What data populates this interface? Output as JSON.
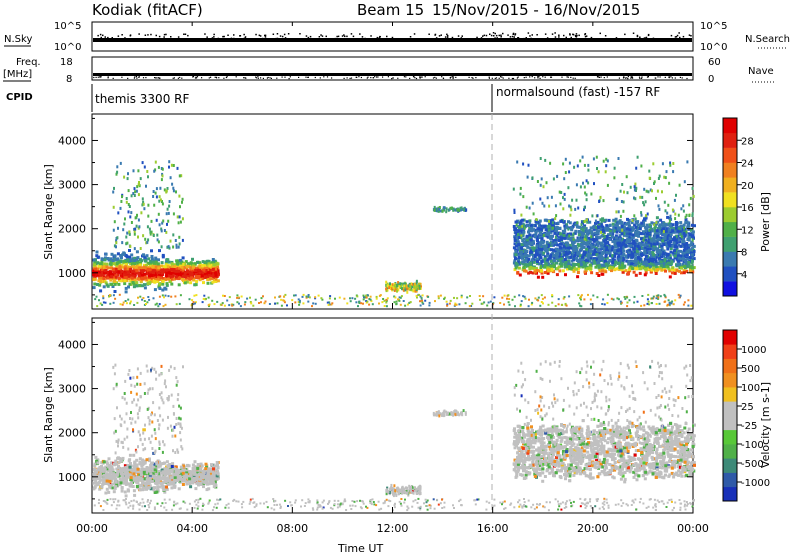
{
  "header": {
    "station": "Kodiak (fitACF)",
    "beam": "Beam 15",
    "date_range": "15/Nov/2015 - 16/Nov/2015"
  },
  "strips": {
    "nsky_label": "N.Sky",
    "nsky_ticks": [
      "10^5",
      "10^0"
    ],
    "nsearch_label": "N.Search",
    "nsearch_ticks": [
      "10^5",
      "10^0"
    ],
    "freq_label_line1": "Freq.",
    "freq_label_line2": "[MHz]",
    "freq_ticks": [
      "18",
      "8"
    ],
    "nave_label": "Nave",
    "nave_ticks": [
      "60",
      "0"
    ],
    "cpid_label": "CPID",
    "cpid_segments": [
      {
        "label": "themis 3300 RF",
        "start_hour": 0
      },
      {
        "label": "normalsound (fast) -157 RF",
        "start_hour": 16
      }
    ]
  },
  "chart_data": [
    {
      "type": "heatmap",
      "panel": "power",
      "xlabel": "",
      "ylabel": "Slant Range [km]",
      "xlim": [
        0,
        24
      ],
      "ylim": [
        180,
        4600
      ],
      "yticks": [
        1000,
        2000,
        3000,
        4000
      ],
      "colorbar": {
        "label": "Power [dB]",
        "ticks": [
          4,
          8,
          12,
          16,
          20,
          24,
          28
        ],
        "colors": [
          "#1010e0",
          "#2050c0",
          "#3a7ab0",
          "#3fa070",
          "#50b048",
          "#9ccc30",
          "#f0e020",
          "#f0b020",
          "#f08020",
          "#f05018",
          "#e02010",
          "#e00000"
        ]
      }
    },
    {
      "type": "heatmap",
      "panel": "velocity",
      "xlabel": "Time UT",
      "ylabel": "Slant Range [km]",
      "xlim": [
        0,
        24
      ],
      "ylim": [
        180,
        4600
      ],
      "yticks": [
        1000,
        2000,
        3000,
        4000
      ],
      "xticks": [
        "00:00",
        "04:00",
        "08:00",
        "12:00",
        "16:00",
        "20:00",
        "00:00"
      ],
      "colorbar": {
        "label": "Velocity [m s-1]",
        "ticks": [
          "1000",
          "500",
          "100",
          "25",
          "-25",
          "-100",
          "-500",
          "-1000"
        ],
        "colors": [
          "#1830b8",
          "#2f5aa8",
          "#3d8a78",
          "#50b048",
          "#58c838",
          "#c0c0c0",
          "#c0c0c0",
          "#f0c020",
          "#f09020",
          "#f07018",
          "#f04018",
          "#e00000"
        ]
      }
    }
  ]
}
